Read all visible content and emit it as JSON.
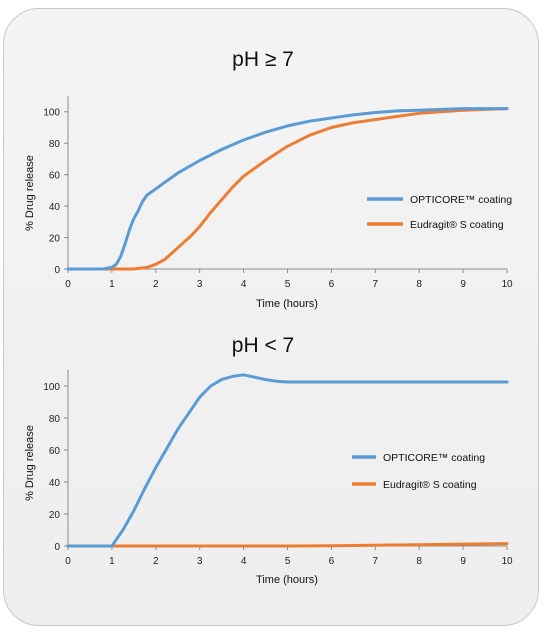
{
  "colors": {
    "opticore": "#5b9bd5",
    "eudragit": "#ed7d31",
    "background": "#efefef"
  },
  "chart_data": [
    {
      "type": "line",
      "title": "pH ≥ 7",
      "xlabel": "Time (hours)",
      "ylabel": "% Drug release",
      "xlim": [
        0,
        10
      ],
      "ylim": [
        0,
        110
      ],
      "xticks": [
        0,
        1,
        2,
        3,
        4,
        5,
        6,
        7,
        8,
        9,
        10
      ],
      "yticks": [
        0,
        20,
        40,
        60,
        80,
        100
      ],
      "grid": false,
      "legend_position": "right",
      "series": [
        {
          "name": "OPTICORE™ coating",
          "color": "#5b9bd5",
          "x": [
            0,
            0.8,
            1.0,
            1.1,
            1.2,
            1.3,
            1.4,
            1.5,
            1.6,
            1.7,
            1.8,
            2.0,
            2.25,
            2.5,
            3.0,
            3.5,
            4.0,
            4.5,
            5.0,
            5.5,
            6.0,
            6.5,
            7.0,
            7.5,
            8.0,
            8.5,
            9.0,
            9.5,
            10.0
          ],
          "y": [
            0,
            0,
            1,
            3,
            8,
            16,
            25,
            32,
            37,
            43,
            47,
            51,
            56,
            61,
            69,
            76,
            82,
            87,
            91,
            94,
            96,
            98,
            99.5,
            100.5,
            101,
            101.5,
            102,
            102,
            102
          ]
        },
        {
          "name": "Eudragit® S coating",
          "color": "#ed7d31",
          "x": [
            0,
            1.5,
            1.8,
            2.0,
            2.2,
            2.4,
            2.6,
            2.8,
            3.0,
            3.25,
            3.5,
            3.75,
            4.0,
            4.25,
            4.5,
            5.0,
            5.5,
            6.0,
            6.5,
            7.0,
            7.5,
            8.0,
            8.5,
            9.0,
            9.5,
            10.0
          ],
          "y": [
            0,
            0,
            1,
            3,
            6,
            11,
            16,
            21,
            27,
            36,
            44,
            52,
            59,
            64,
            69,
            78,
            85,
            90,
            93,
            95,
            97,
            99,
            100,
            101,
            101.5,
            102
          ]
        }
      ]
    },
    {
      "type": "line",
      "title": "pH < 7",
      "xlabel": "Time (hours)",
      "ylabel": "% Drug release",
      "xlim": [
        0,
        10
      ],
      "ylim": [
        0,
        110
      ],
      "xticks": [
        0,
        1,
        2,
        3,
        4,
        5,
        6,
        7,
        8,
        9,
        10
      ],
      "yticks": [
        0,
        20,
        40,
        60,
        80,
        100
      ],
      "grid": false,
      "legend_position": "right",
      "series": [
        {
          "name": "OPTICORE™ coating",
          "color": "#5b9bd5",
          "x": [
            0,
            1.0,
            1.25,
            1.5,
            1.75,
            2.0,
            2.5,
            3.0,
            3.25,
            3.5,
            3.75,
            4.0,
            4.25,
            4.5,
            4.75,
            5.0,
            6.0,
            7.0,
            8.0,
            9.0,
            10.0
          ],
          "y": [
            0,
            0,
            10,
            22,
            36,
            49,
            73,
            93,
            100,
            104,
            106,
            107,
            105.5,
            104,
            103,
            102.5,
            102.5,
            102.5,
            102.5,
            102.5,
            102.5
          ]
        },
        {
          "name": "Eudragit® S coating",
          "color": "#ed7d31",
          "x": [
            0,
            5.0,
            6.0,
            7.0,
            8.0,
            9.0,
            10.0
          ],
          "y": [
            0,
            0,
            0.2,
            0.5,
            0.8,
            1.2,
            1.5
          ]
        }
      ]
    }
  ]
}
